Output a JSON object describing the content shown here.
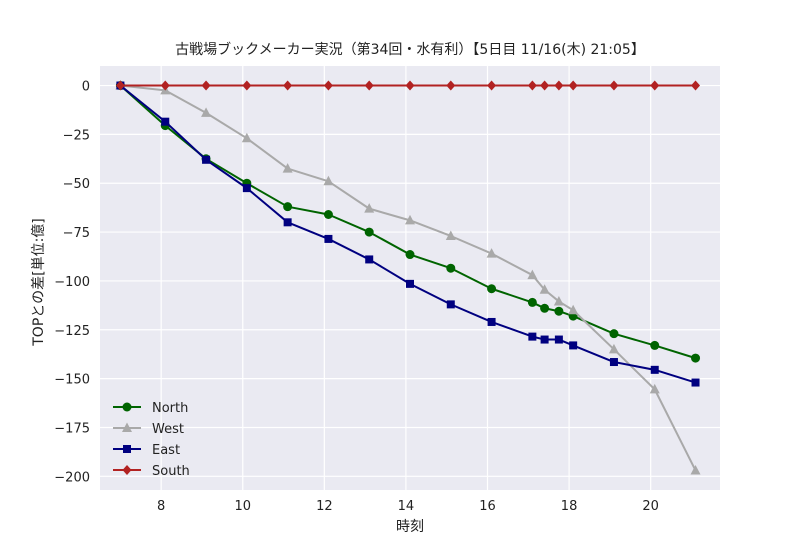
{
  "chart_data": {
    "type": "line",
    "title": "古戦場ブックメーカー実況（第34回・水有利）【5日目 11/16(木) 21:05】",
    "xlabel": "時刻",
    "ylabel": "TOPとの差[単位:億]",
    "xlim": [
      6.5,
      21.7
    ],
    "ylim": [
      -207,
      10
    ],
    "xticks": [
      8,
      10,
      12,
      14,
      16,
      18,
      20
    ],
    "yticks": [
      0,
      -25,
      -50,
      -75,
      -100,
      -125,
      -150,
      -175,
      -200
    ],
    "ytick_labels": [
      "0",
      "−25",
      "−50",
      "−75",
      "−100",
      "−125",
      "−150",
      "−175",
      "−200"
    ],
    "grid": true,
    "legend_position": "lower-left",
    "series": [
      {
        "name": "North",
        "color": "#006400",
        "marker": "circle",
        "x": [
          7.0,
          8.1,
          9.1,
          10.1,
          11.1,
          12.1,
          13.1,
          14.1,
          15.1,
          16.1,
          17.1,
          17.4,
          17.75,
          18.1,
          19.1,
          20.1,
          21.1
        ],
        "y": [
          0,
          -20.5,
          -37.5,
          -50,
          -62,
          -66,
          -75,
          -86.5,
          -93.5,
          -104,
          -111,
          -114,
          -115.5,
          -118,
          -127,
          -133,
          -139.5
        ]
      },
      {
        "name": "West",
        "color": "#a9a9a9",
        "marker": "triangle",
        "x": [
          7.0,
          8.1,
          9.1,
          10.1,
          11.1,
          12.1,
          13.1,
          14.1,
          15.1,
          16.1,
          17.1,
          17.4,
          17.75,
          18.1,
          19.1,
          20.1,
          21.1
        ],
        "y": [
          0,
          -2.5,
          -14,
          -27,
          -42.5,
          -49,
          -63,
          -69,
          -77,
          -86,
          -97,
          -104.5,
          -110.5,
          -115,
          -135,
          -155.5,
          -197
        ]
      },
      {
        "name": "East",
        "color": "#000080",
        "marker": "square",
        "x": [
          7.0,
          8.1,
          9.1,
          10.1,
          11.1,
          12.1,
          13.1,
          14.1,
          15.1,
          16.1,
          17.1,
          17.4,
          17.75,
          18.1,
          19.1,
          20.1,
          21.1
        ],
        "y": [
          0,
          -18.5,
          -38,
          -52.5,
          -70,
          -78.5,
          -89,
          -101.5,
          -112,
          -121,
          -128.5,
          -130,
          -130,
          -133,
          -141.5,
          -145.5,
          -152
        ]
      },
      {
        "name": "South",
        "color": "#b22222",
        "marker": "diamond",
        "x": [
          7.0,
          8.1,
          9.1,
          10.1,
          11.1,
          12.1,
          13.1,
          14.1,
          15.1,
          16.1,
          17.1,
          17.4,
          17.75,
          18.1,
          19.1,
          20.1,
          21.1
        ],
        "y": [
          0,
          0,
          0,
          0,
          0,
          0,
          0,
          0,
          0,
          0,
          0,
          0,
          0,
          0,
          0,
          0,
          0
        ]
      }
    ]
  },
  "colors": {
    "plot_background": "#eaeaf2",
    "grid": "#ffffff"
  }
}
